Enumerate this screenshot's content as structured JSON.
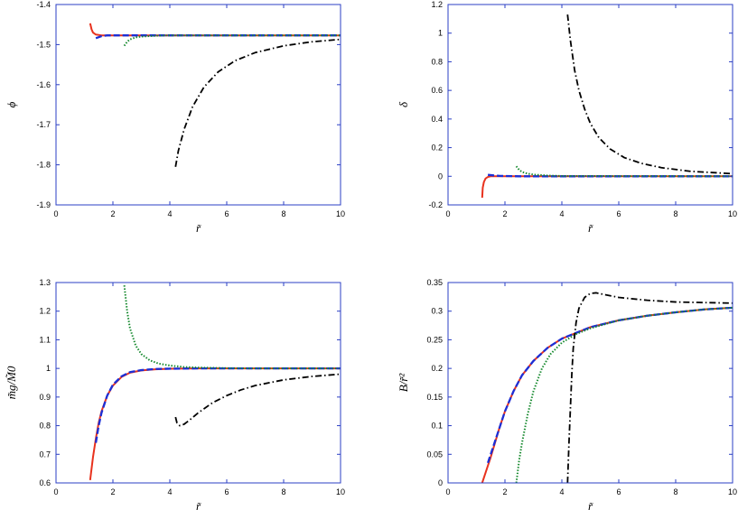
{
  "chart_data": [
    {
      "type": "line",
      "ylabel": "ϕ",
      "xlabel": "r̃",
      "xlim": [
        0,
        10
      ],
      "ylim": [
        -1.9,
        -1.4
      ],
      "xticks": [
        "0",
        "2",
        "4",
        "6",
        "8",
        "10"
      ],
      "yticks": [
        "-1.9",
        "-1.8",
        "-1.7",
        "-1.6",
        "-1.5",
        "-1.4"
      ],
      "series": [
        {
          "color": "#e8321e",
          "style": "solid",
          "x": [
            1.2,
            1.25,
            1.3,
            1.4,
            1.6,
            2.0,
            3.0,
            5.0,
            10.0
          ],
          "y": [
            -1.447,
            -1.462,
            -1.47,
            -1.475,
            -1.477,
            -1.477,
            -1.477,
            -1.477,
            -1.477
          ]
        },
        {
          "color": "#1c2fd6",
          "style": "dashed",
          "x": [
            1.4,
            1.6,
            1.8,
            2.0,
            2.5,
            3.0,
            5.0,
            10.0
          ],
          "y": [
            -1.484,
            -1.479,
            -1.477,
            -1.477,
            -1.477,
            -1.477,
            -1.477,
            -1.477
          ]
        },
        {
          "color": "#178a2f",
          "style": "dotted",
          "x": [
            2.4,
            2.5,
            2.6,
            2.8,
            3.0,
            3.5,
            4.0,
            5.0,
            10.0
          ],
          "y": [
            -1.503,
            -1.493,
            -1.487,
            -1.482,
            -1.48,
            -1.478,
            -1.477,
            -1.477,
            -1.477
          ]
        },
        {
          "color": "#000000",
          "style": "dashdot",
          "x": [
            4.2,
            4.3,
            4.5,
            4.8,
            5.2,
            5.7,
            6.3,
            7.0,
            8.0,
            9.0,
            10.0
          ],
          "y": [
            -1.805,
            -1.765,
            -1.712,
            -1.655,
            -1.606,
            -1.568,
            -1.54,
            -1.52,
            -1.503,
            -1.493,
            -1.487
          ]
        }
      ]
    },
    {
      "type": "line",
      "ylabel": "δ",
      "xlabel": "r̃",
      "xlim": [
        0,
        10
      ],
      "ylim": [
        -0.2,
        1.2
      ],
      "xticks": [
        "0",
        "2",
        "4",
        "6",
        "8",
        "10"
      ],
      "yticks": [
        "-0.2",
        "0",
        "0.2",
        "0.4",
        "0.6",
        "0.8",
        "1",
        "1.2"
      ],
      "series": [
        {
          "color": "#e8321e",
          "style": "solid",
          "x": [
            1.2,
            1.22,
            1.26,
            1.32,
            1.4,
            1.5,
            1.7,
            2.0,
            3.0,
            10.0
          ],
          "y": [
            -0.15,
            -0.08,
            -0.04,
            -0.015,
            -0.005,
            0.0,
            0.0,
            0.0,
            0.0,
            0.0
          ]
        },
        {
          "color": "#1c2fd6",
          "style": "dashed",
          "x": [
            1.4,
            1.6,
            1.8,
            2.0,
            2.5,
            3.0,
            10.0
          ],
          "y": [
            0.01,
            0.006,
            0.003,
            0.002,
            0.0,
            0.0,
            0.0
          ]
        },
        {
          "color": "#178a2f",
          "style": "dotted",
          "x": [
            2.4,
            2.5,
            2.6,
            2.8,
            3.0,
            3.5,
            4.0,
            10.0
          ],
          "y": [
            0.07,
            0.045,
            0.03,
            0.018,
            0.012,
            0.005,
            0.002,
            0.0
          ]
        },
        {
          "color": "#000000",
          "style": "dashdot",
          "x": [
            4.2,
            4.3,
            4.45,
            4.6,
            4.8,
            5.0,
            5.3,
            5.7,
            6.2,
            6.8,
            7.5,
            8.5,
            10.0
          ],
          "y": [
            1.13,
            0.95,
            0.74,
            0.6,
            0.47,
            0.37,
            0.27,
            0.19,
            0.13,
            0.09,
            0.06,
            0.035,
            0.018
          ]
        }
      ]
    },
    {
      "type": "line",
      "ylabel": "m̃g/M̃0",
      "xlabel": "r̃",
      "xlim": [
        0,
        10
      ],
      "ylim": [
        0.6,
        1.3
      ],
      "xticks": [
        "0",
        "2",
        "4",
        "6",
        "8",
        "10"
      ],
      "yticks": [
        "0.6",
        "0.7",
        "0.8",
        "0.9",
        "1",
        "1.1",
        "1.2",
        "1.3"
      ],
      "series": [
        {
          "color": "#e8321e",
          "style": "solid",
          "x": [
            1.2,
            1.3,
            1.4,
            1.5,
            1.6,
            1.8,
            2.0,
            2.3,
            2.6,
            3.0,
            3.5,
            4.0,
            5.0,
            10.0
          ],
          "y": [
            0.61,
            0.69,
            0.755,
            0.81,
            0.85,
            0.905,
            0.94,
            0.97,
            0.985,
            0.993,
            0.997,
            0.999,
            1.0,
            1.0
          ]
        },
        {
          "color": "#1c2fd6",
          "style": "dashed",
          "x": [
            1.4,
            1.5,
            1.6,
            1.8,
            2.0,
            2.3,
            2.6,
            3.0,
            3.5,
            4.0,
            5.0,
            10.0
          ],
          "y": [
            0.74,
            0.8,
            0.845,
            0.905,
            0.943,
            0.972,
            0.987,
            0.994,
            0.998,
            0.999,
            1.0,
            1.0
          ]
        },
        {
          "color": "#178a2f",
          "style": "dotted",
          "x": [
            2.4,
            2.5,
            2.6,
            2.8,
            3.0,
            3.3,
            3.6,
            4.0,
            4.5,
            5.0,
            6.0,
            7.0,
            10.0
          ],
          "y": [
            1.29,
            1.2,
            1.14,
            1.08,
            1.05,
            1.028,
            1.017,
            1.01,
            1.005,
            1.003,
            1.001,
            1.0,
            1.0
          ]
        },
        {
          "color": "#000000",
          "style": "dashdot",
          "x": [
            4.2,
            4.25,
            4.35,
            4.5,
            4.7,
            5.0,
            5.5,
            6.0,
            6.5,
            7.0,
            8.0,
            9.0,
            10.0
          ],
          "y": [
            0.83,
            0.81,
            0.8,
            0.805,
            0.82,
            0.845,
            0.88,
            0.905,
            0.925,
            0.94,
            0.96,
            0.972,
            0.98
          ]
        }
      ]
    },
    {
      "type": "line",
      "ylabel": "B/r̃²",
      "xlabel": "r̃",
      "xlim": [
        0,
        10
      ],
      "ylim": [
        0,
        0.35
      ],
      "xticks": [
        "0",
        "2",
        "4",
        "6",
        "8",
        "10"
      ],
      "yticks": [
        "0",
        "0.05",
        "0.1",
        "0.15",
        "0.2",
        "0.25",
        "0.3",
        "0.35"
      ],
      "series": [
        {
          "color": "#e8321e",
          "style": "solid",
          "x": [
            1.2,
            1.5,
            1.8,
            2.0,
            2.3,
            2.6,
            3.0,
            3.5,
            4.0,
            5.0,
            6.0,
            7.0,
            8.0,
            9.0,
            10.0
          ],
          "y": [
            0.0,
            0.045,
            0.095,
            0.125,
            0.16,
            0.188,
            0.213,
            0.236,
            0.252,
            0.272,
            0.284,
            0.292,
            0.298,
            0.303,
            0.306
          ]
        },
        {
          "color": "#1c2fd6",
          "style": "dashed",
          "x": [
            1.4,
            1.6,
            1.8,
            2.0,
            2.3,
            2.6,
            3.0,
            3.5,
            4.0,
            5.0,
            6.0,
            7.0,
            8.0,
            9.0,
            10.0
          ],
          "y": [
            0.035,
            0.065,
            0.095,
            0.125,
            0.16,
            0.188,
            0.213,
            0.236,
            0.252,
            0.272,
            0.284,
            0.292,
            0.298,
            0.303,
            0.306
          ]
        },
        {
          "color": "#178a2f",
          "style": "dotted",
          "x": [
            2.4,
            2.5,
            2.6,
            2.8,
            3.0,
            3.3,
            3.6,
            4.0,
            4.5,
            5.0,
            6.0,
            7.0,
            8.0,
            9.0,
            10.0
          ],
          "y": [
            0.0,
            0.04,
            0.07,
            0.12,
            0.16,
            0.2,
            0.225,
            0.245,
            0.26,
            0.27,
            0.284,
            0.292,
            0.298,
            0.303,
            0.306
          ]
        },
        {
          "color": "#000000",
          "style": "dashdot",
          "x": [
            4.2,
            4.25,
            4.3,
            4.35,
            4.4,
            4.5,
            4.6,
            4.8,
            5.0,
            5.2,
            5.5,
            6.0,
            7.0,
            8.0,
            9.0,
            10.0
          ],
          "y": [
            0.0,
            0.07,
            0.13,
            0.19,
            0.235,
            0.28,
            0.305,
            0.324,
            0.331,
            0.332,
            0.329,
            0.324,
            0.319,
            0.316,
            0.315,
            0.314
          ]
        }
      ]
    }
  ]
}
